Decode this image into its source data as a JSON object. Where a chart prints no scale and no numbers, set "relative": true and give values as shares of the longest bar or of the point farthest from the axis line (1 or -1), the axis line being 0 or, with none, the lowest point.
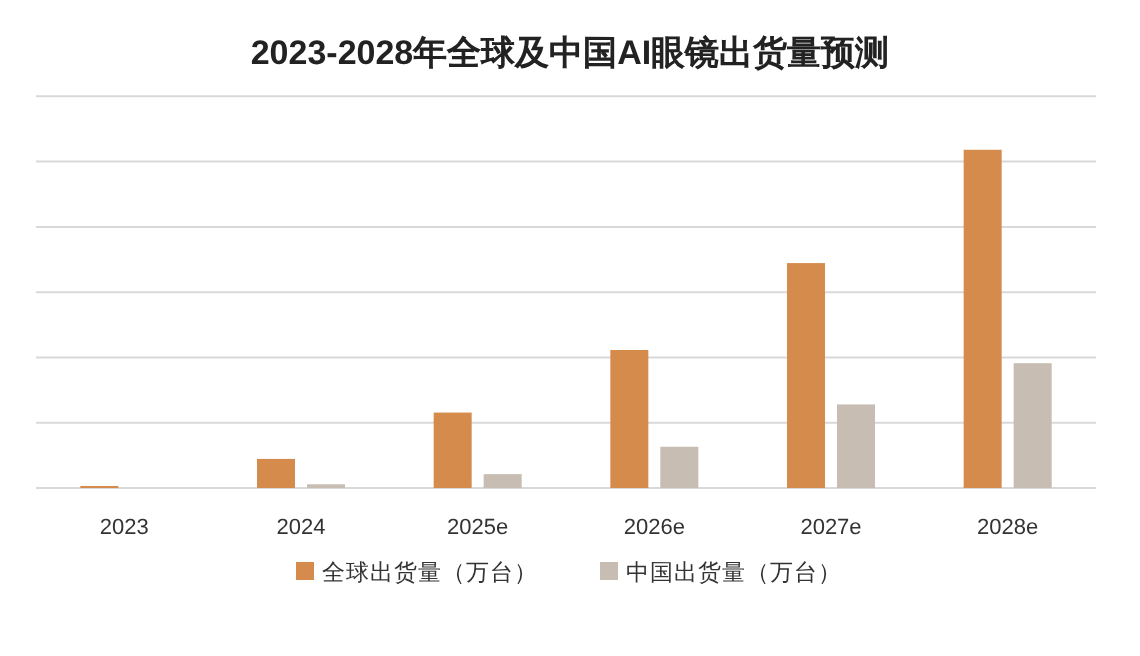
{
  "chart_data": {
    "type": "bar",
    "title": "2023-2028年全球及中国AI眼镜出货量预测",
    "categories": [
      "2023",
      "2024",
      "2025e",
      "2026e",
      "2027e",
      "2028e"
    ],
    "relative": true,
    "grid": "y",
    "legend": "bottom",
    "series": [
      {
        "name": "全球出货量（万台）",
        "color": "#d58b4c",
        "values": [
          0.006,
          0.086,
          0.223,
          0.408,
          0.665,
          1
        ]
      },
      {
        "name": "中国出货量（万台）",
        "color": "#c7bdb2",
        "values": [
          null,
          0.011,
          0.041,
          0.122,
          0.247,
          0.369
        ]
      }
    ]
  }
}
